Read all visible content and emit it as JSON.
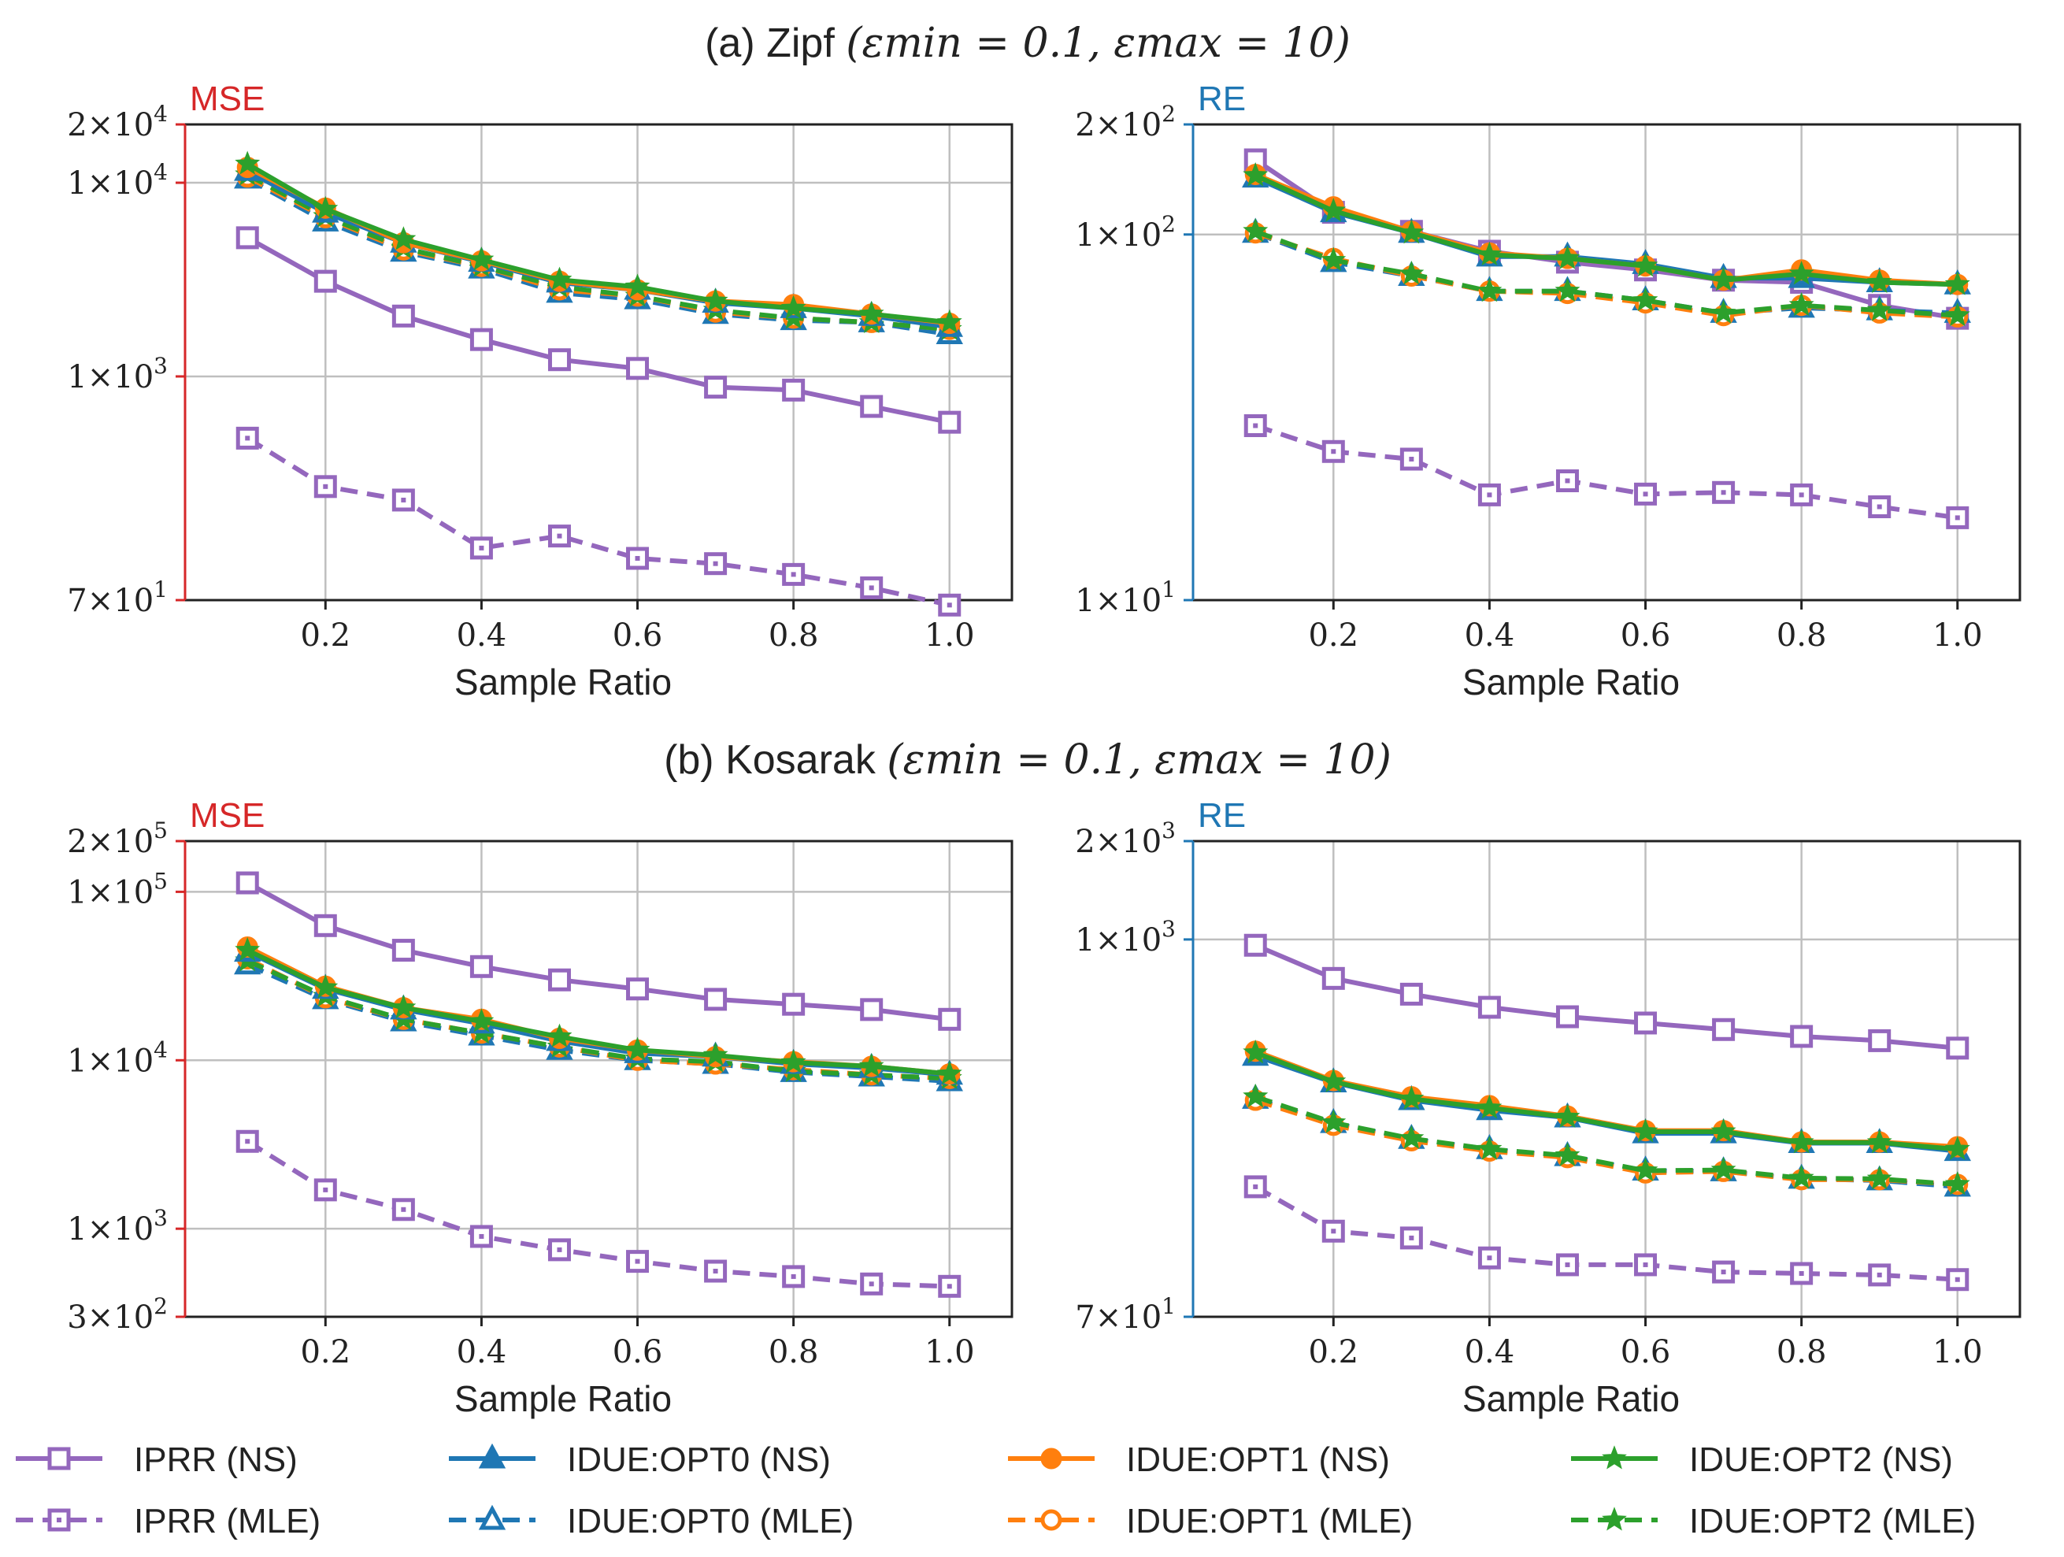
{
  "legend": [
    {
      "label": "IPRR (NS)",
      "color": "#9467bd",
      "marker": "square",
      "dash": false
    },
    {
      "label": "IPRR (MLE)",
      "color": "#9467bd",
      "marker": "square",
      "dash": true
    },
    {
      "label": "IDUE:OPT0 (NS)",
      "color": "#1f77b4",
      "marker": "triangle",
      "dash": false
    },
    {
      "label": "IDUE:OPT0 (MLE)",
      "color": "#1f77b4",
      "marker": "triangle",
      "dash": true
    },
    {
      "label": "IDUE:OPT1 (NS)",
      "color": "#ff7f0e",
      "marker": "circle",
      "dash": false
    },
    {
      "label": "IDUE:OPT1 (MLE)",
      "color": "#ff7f0e",
      "marker": "circle",
      "dash": true
    },
    {
      "label": "IDUE:OPT2 (NS)",
      "color": "#2ca02c",
      "marker": "star",
      "dash": false
    },
    {
      "label": "IDUE:OPT2 (MLE)",
      "color": "#2ca02c",
      "marker": "star",
      "dash": true
    }
  ],
  "chart_data": [
    {
      "type": "line",
      "section_title": "(a) Zipf",
      "section_params": "(εmin = 0.1, εmax = 10)",
      "corner_label": "MSE",
      "corner_color": "#d62728",
      "xlabel": "Sample Ratio",
      "x": [
        0.1,
        0.2,
        0.3,
        0.4,
        0.5,
        0.6,
        0.7,
        0.8,
        0.9,
        1.0
      ],
      "xlim": [
        0.02,
        1.08
      ],
      "xticks": [
        0.2,
        0.4,
        0.6,
        0.8,
        1.0
      ],
      "xtick_labels": [
        "0.2",
        "0.4",
        "0.6",
        "0.8",
        "1.0"
      ],
      "yscale": "log",
      "ylim": [
        70,
        20000
      ],
      "yticks": [
        {
          "value": 20000,
          "base": "2×10",
          "exp": "4"
        },
        {
          "value": 10000,
          "base": "1×10",
          "exp": "4"
        },
        {
          "value": 1000,
          "base": "1×10",
          "exp": "3"
        },
        {
          "value": 70,
          "base": "7×10",
          "exp": "1"
        }
      ],
      "ygrid": [
        10000,
        1000
      ],
      "series": [
        {
          "name": "IPRR (NS)",
          "values": [
            5200,
            3100,
            2050,
            1550,
            1220,
            1100,
            880,
            850,
            700,
            580
          ]
        },
        {
          "name": "IPRR (MLE)",
          "values": [
            480,
            270,
            230,
            130,
            150,
            115,
            108,
            95,
            81,
            66
          ]
        },
        {
          "name": "IDUE:OPT0 (NS)",
          "values": [
            11500,
            7000,
            4900,
            3900,
            3050,
            2800,
            2400,
            2250,
            2050,
            1800
          ]
        },
        {
          "name": "IDUE:OPT0 (MLE)",
          "values": [
            10500,
            6300,
            4400,
            3600,
            2700,
            2500,
            2100,
            1950,
            1900,
            1650
          ]
        },
        {
          "name": "IDUE:OPT1 (NS)",
          "values": [
            12000,
            7400,
            4900,
            3950,
            3100,
            2800,
            2450,
            2350,
            2100,
            1880
          ]
        },
        {
          "name": "IDUE:OPT1 (MLE)",
          "values": [
            10700,
            6600,
            4500,
            3700,
            2800,
            2600,
            2150,
            2000,
            1900,
            1750
          ]
        },
        {
          "name": "IDUE:OPT2 (NS)",
          "values": [
            12500,
            7300,
            5100,
            4000,
            3150,
            2900,
            2450,
            2250,
            2100,
            1900
          ]
        },
        {
          "name": "IDUE:OPT2 (MLE)",
          "values": [
            11000,
            6700,
            4600,
            3700,
            2900,
            2600,
            2200,
            2000,
            1900,
            1750
          ]
        }
      ]
    },
    {
      "type": "line",
      "corner_label": "RE",
      "corner_color": "#1f77b4",
      "xlabel": "Sample Ratio",
      "x": [
        0.1,
        0.2,
        0.3,
        0.4,
        0.5,
        0.6,
        0.7,
        0.8,
        0.9,
        1.0
      ],
      "xlim": [
        0.02,
        1.08
      ],
      "xticks": [
        0.2,
        0.4,
        0.6,
        0.8,
        1.0
      ],
      "xtick_labels": [
        "0.2",
        "0.4",
        "0.6",
        "0.8",
        "1.0"
      ],
      "yscale": "log",
      "ylim": [
        10,
        200
      ],
      "yticks": [
        {
          "value": 200,
          "base": "2×10",
          "exp": "2"
        },
        {
          "value": 100,
          "base": "1×10",
          "exp": "2"
        },
        {
          "value": 10,
          "base": "1×10",
          "exp": "1"
        }
      ],
      "ygrid": [
        100
      ],
      "series": [
        {
          "name": "IPRR (NS)",
          "values": [
            160,
            115,
            102,
            90,
            84,
            80,
            75,
            74,
            64,
            59
          ]
        },
        {
          "name": "IPRR (MLE)",
          "values": [
            30,
            25.5,
            24.3,
            19.4,
            21.2,
            19.5,
            19.7,
            19.4,
            18,
            16.8
          ]
        },
        {
          "name": "IDUE:OPT0 (NS)",
          "values": [
            143,
            115,
            101,
            87,
            87,
            83,
            76,
            76,
            74,
            73
          ]
        },
        {
          "name": "IDUE:OPT0 (MLE)",
          "values": [
            101,
            84,
            77,
            70,
            70,
            66,
            61,
            63,
            62,
            61
          ]
        },
        {
          "name": "IDUE:OPT1 (NS)",
          "values": [
            146,
            119,
            102,
            89,
            86,
            82,
            75,
            80,
            75,
            73
          ]
        },
        {
          "name": "IDUE:OPT1 (MLE)",
          "values": [
            101,
            86,
            77,
            70,
            69,
            65,
            60,
            64,
            61,
            59.5
          ]
        },
        {
          "name": "IDUE:OPT2 (NS)",
          "values": [
            145,
            116,
            101,
            88,
            86,
            82,
            75,
            78,
            74,
            73
          ]
        },
        {
          "name": "IDUE:OPT2 (MLE)",
          "values": [
            102,
            85,
            78,
            70,
            70,
            66,
            61,
            64,
            62,
            60
          ]
        }
      ]
    },
    {
      "type": "line",
      "section_title": "(b) Kosarak",
      "section_params": "(εmin = 0.1, εmax = 10)",
      "corner_label": "MSE",
      "corner_color": "#d62728",
      "xlabel": "Sample Ratio",
      "x": [
        0.1,
        0.2,
        0.3,
        0.4,
        0.5,
        0.6,
        0.7,
        0.8,
        0.9,
        1.0
      ],
      "xlim": [
        0.02,
        1.08
      ],
      "xticks": [
        0.2,
        0.4,
        0.6,
        0.8,
        1.0
      ],
      "xtick_labels": [
        "0.2",
        "0.4",
        "0.6",
        "0.8",
        "1.0"
      ],
      "yscale": "log",
      "ylim": [
        300,
        200000
      ],
      "yticks": [
        {
          "value": 200000,
          "base": "2×10",
          "exp": "5"
        },
        {
          "value": 100000,
          "base": "1×10",
          "exp": "5"
        },
        {
          "value": 10000,
          "base": "1×10",
          "exp": "4"
        },
        {
          "value": 1000,
          "base": "1×10",
          "exp": "3"
        },
        {
          "value": 300,
          "base": "3×10",
          "exp": "2"
        }
      ],
      "ygrid": [
        100000,
        10000,
        1000
      ],
      "series": [
        {
          "name": "IPRR (NS)",
          "values": [
            113000,
            63000,
            45000,
            36000,
            30000,
            26500,
            23000,
            21500,
            20000,
            17500
          ]
        },
        {
          "name": "IPRR (MLE)",
          "values": [
            3300,
            1700,
            1300,
            900,
            750,
            640,
            560,
            520,
            470,
            455
          ]
        },
        {
          "name": "IDUE:OPT0 (NS)",
          "values": [
            44000,
            26500,
            20000,
            16500,
            13000,
            11000,
            10500,
            9500,
            9000,
            8200
          ]
        },
        {
          "name": "IDUE:OPT0 (MLE)",
          "values": [
            37000,
            23000,
            17000,
            14000,
            11500,
            10000,
            9500,
            8500,
            8000,
            7500
          ]
        },
        {
          "name": "IDUE:OPT1 (NS)",
          "values": [
            47000,
            27500,
            20500,
            17500,
            13500,
            11500,
            10500,
            9800,
            9200,
            8300
          ]
        },
        {
          "name": "IDUE:OPT1 (MLE)",
          "values": [
            40000,
            23500,
            17500,
            14500,
            12000,
            10000,
            9500,
            8800,
            8200,
            7800
          ]
        },
        {
          "name": "IDUE:OPT2 (NS)",
          "values": [
            45000,
            27000,
            20500,
            17000,
            13800,
            11500,
            10700,
            9700,
            9200,
            8300
          ]
        },
        {
          "name": "IDUE:OPT2 (MLE)",
          "values": [
            39000,
            24000,
            17500,
            14500,
            12000,
            10200,
            9800,
            8600,
            8200,
            7800
          ]
        }
      ]
    },
    {
      "type": "line",
      "corner_label": "RE",
      "corner_color": "#1f77b4",
      "xlabel": "Sample Ratio",
      "x": [
        0.1,
        0.2,
        0.3,
        0.4,
        0.5,
        0.6,
        0.7,
        0.8,
        0.9,
        1.0
      ],
      "xlim": [
        0.02,
        1.08
      ],
      "xticks": [
        0.2,
        0.4,
        0.6,
        0.8,
        1.0
      ],
      "xtick_labels": [
        "0.2",
        "0.4",
        "0.6",
        "0.8",
        "1.0"
      ],
      "yscale": "log",
      "ylim": [
        70,
        2000
      ],
      "yticks": [
        {
          "value": 2000,
          "base": "2×10",
          "exp": "3"
        },
        {
          "value": 1000,
          "base": "1×10",
          "exp": "3"
        },
        {
          "value": 70,
          "base": "7×10",
          "exp": "1"
        }
      ],
      "ygrid": [
        1000
      ],
      "series": [
        {
          "name": "IPRR (NS)",
          "values": [
            960,
            760,
            680,
            620,
            580,
            555,
            530,
            505,
            490,
            465
          ]
        },
        {
          "name": "IPRR (MLE)",
          "values": [
            175,
            128,
            122,
            106,
            101,
            101,
            96,
            95,
            94,
            91
          ]
        },
        {
          "name": "IDUE:OPT0 (NS)",
          "values": [
            440,
            365,
            322,
            300,
            285,
            255,
            255,
            238,
            238,
            225
          ]
        },
        {
          "name": "IDUE:OPT0 (MLE)",
          "values": [
            325,
            274,
            245,
            228,
            217,
            196,
            195,
            185,
            183,
            175
          ]
        },
        {
          "name": "IDUE:OPT1 (NS)",
          "values": [
            455,
            370,
            330,
            310,
            288,
            260,
            260,
            240,
            240,
            232
          ]
        },
        {
          "name": "IDUE:OPT1 (MLE)",
          "values": [
            322,
            270,
            242,
            225,
            215,
            193,
            195,
            184,
            184,
            178
          ]
        },
        {
          "name": "IDUE:OPT2 (NS)",
          "values": [
            450,
            367,
            325,
            305,
            286,
            258,
            258,
            239,
            239,
            228
          ]
        },
        {
          "name": "IDUE:OPT2 (MLE)",
          "values": [
            330,
            275,
            246,
            228,
            218,
            196,
            197,
            186,
            185,
            178
          ]
        }
      ]
    }
  ]
}
